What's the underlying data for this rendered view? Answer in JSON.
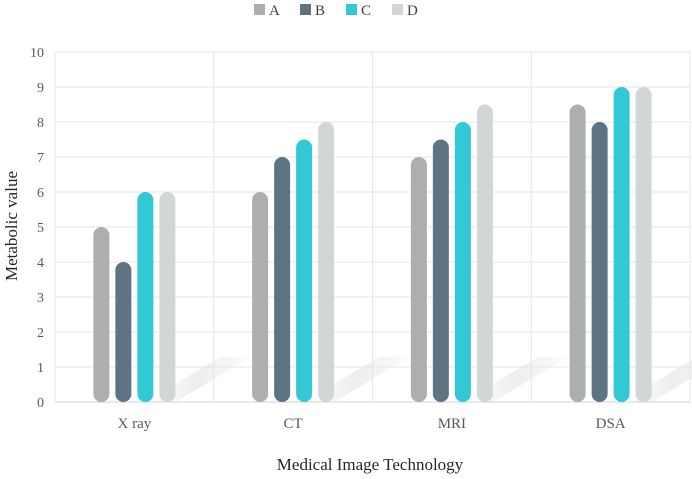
{
  "chart_data": {
    "type": "bar",
    "categories": [
      "X ray",
      "CT",
      "MRI",
      "DSA"
    ],
    "series": [
      {
        "name": "A",
        "color": "#adafae",
        "values": [
          5,
          6,
          7,
          8.5
        ]
      },
      {
        "name": "B",
        "color": "#5f7482",
        "values": [
          4,
          7,
          7.5,
          8
        ]
      },
      {
        "name": "C",
        "color": "#33c8d6",
        "values": [
          6,
          7.5,
          8,
          9
        ]
      },
      {
        "name": "D",
        "color": "#d3d6d7",
        "values": [
          6,
          8,
          8.5,
          9
        ]
      }
    ],
    "title": "",
    "xlabel": "Medical Image Technology",
    "ylabel": "Metabolic value",
    "ylim": [
      0,
      10
    ],
    "yticks": [
      0,
      1,
      2,
      3,
      4,
      5,
      6,
      7,
      8,
      9,
      10
    ],
    "grid": true,
    "legend_position": "top-center"
  }
}
